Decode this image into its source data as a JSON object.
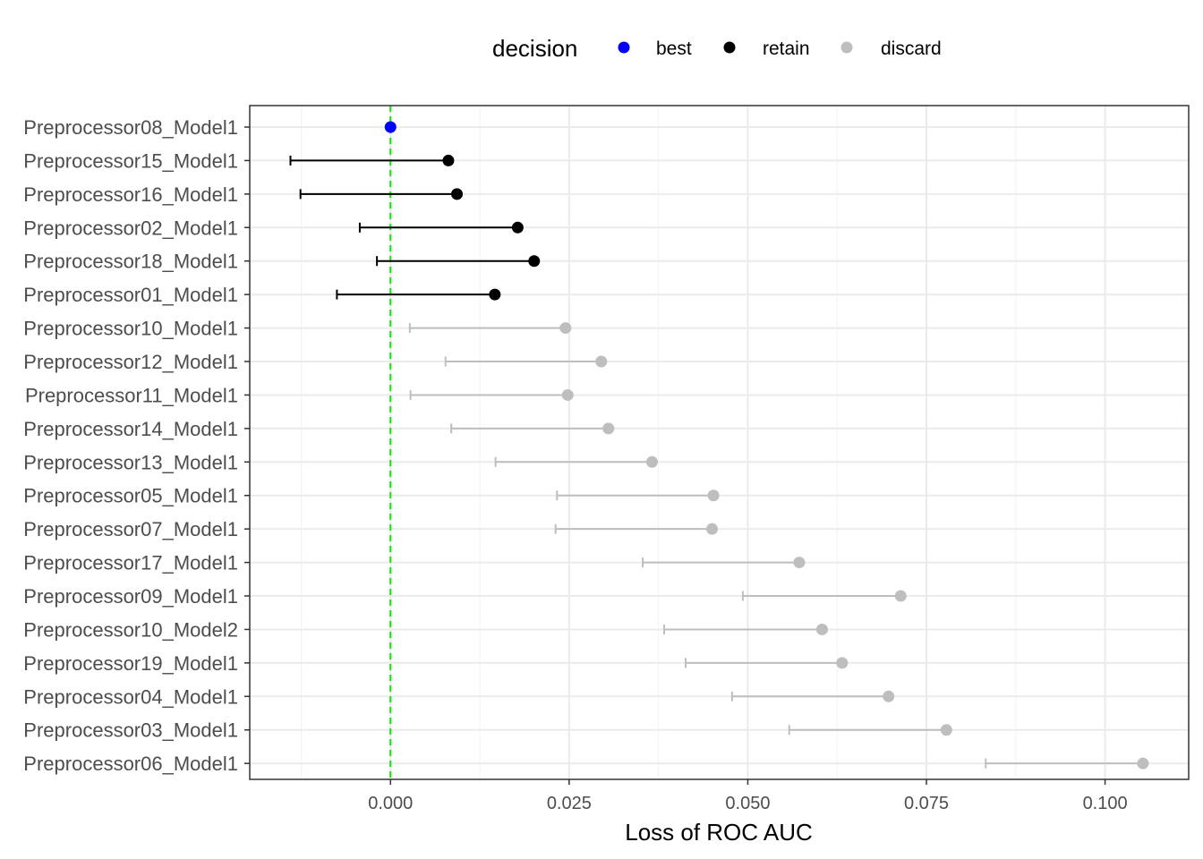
{
  "chart_data": {
    "type": "scatter",
    "xlabel": "Loss of ROC AUC",
    "ylabel": "",
    "xlim": [
      -0.0197,
      0.1117
    ],
    "x_ticks": [
      {
        "value": 0.0,
        "label": "0.000"
      },
      {
        "value": 0.025,
        "label": "0.025"
      },
      {
        "value": 0.05,
        "label": "0.050"
      },
      {
        "value": 0.075,
        "label": "0.075"
      },
      {
        "value": 0.1,
        "label": "0.100"
      }
    ],
    "reference_line": {
      "x": 0.0,
      "color": "#00ee00",
      "style": "dashed"
    },
    "grid": true,
    "legend": {
      "title": "decision",
      "position": "top",
      "entries": [
        {
          "label": "best",
          "color": "#0000ff"
        },
        {
          "label": "retain",
          "color": "#000000"
        },
        {
          "label": "discard",
          "color": "#bebebe"
        }
      ]
    },
    "points": [
      {
        "label": "Preprocessor08_Model1",
        "x": 0.0,
        "lower": null,
        "decision": "best"
      },
      {
        "label": "Preprocessor15_Model1",
        "x": 0.0081,
        "lower": -0.014,
        "decision": "retain"
      },
      {
        "label": "Preprocessor16_Model1",
        "x": 0.0093,
        "lower": -0.0126,
        "decision": "retain"
      },
      {
        "label": "Preprocessor02_Model1",
        "x": 0.0178,
        "lower": -0.0043,
        "decision": "retain"
      },
      {
        "label": "Preprocessor18_Model1",
        "x": 0.0201,
        "lower": -0.0019,
        "decision": "retain"
      },
      {
        "label": "Preprocessor01_Model1",
        "x": 0.0146,
        "lower": -0.0075,
        "decision": "retain"
      },
      {
        "label": "Preprocessor10_Model1",
        "x": 0.0245,
        "lower": 0.0027,
        "decision": "discard"
      },
      {
        "label": "Preprocessor12_Model1",
        "x": 0.0295,
        "lower": 0.0077,
        "decision": "discard"
      },
      {
        "label": "Preprocessor11_Model1",
        "x": 0.0248,
        "lower": 0.0028,
        "decision": "discard"
      },
      {
        "label": "Preprocessor14_Model1",
        "x": 0.0305,
        "lower": 0.0085,
        "decision": "discard"
      },
      {
        "label": "Preprocessor13_Model1",
        "x": 0.0366,
        "lower": 0.0147,
        "decision": "discard"
      },
      {
        "label": "Preprocessor05_Model1",
        "x": 0.0452,
        "lower": 0.0233,
        "decision": "discard"
      },
      {
        "label": "Preprocessor07_Model1",
        "x": 0.045,
        "lower": 0.0231,
        "decision": "discard"
      },
      {
        "label": "Preprocessor17_Model1",
        "x": 0.0572,
        "lower": 0.0353,
        "decision": "discard"
      },
      {
        "label": "Preprocessor09_Model1",
        "x": 0.0714,
        "lower": 0.0493,
        "decision": "discard"
      },
      {
        "label": "Preprocessor10_Model2",
        "x": 0.0604,
        "lower": 0.0383,
        "decision": "discard"
      },
      {
        "label": "Preprocessor19_Model1",
        "x": 0.0632,
        "lower": 0.0413,
        "decision": "discard"
      },
      {
        "label": "Preprocessor04_Model1",
        "x": 0.0697,
        "lower": 0.0478,
        "decision": "discard"
      },
      {
        "label": "Preprocessor03_Model1",
        "x": 0.0778,
        "lower": 0.0558,
        "decision": "discard"
      },
      {
        "label": "Preprocessor06_Model1",
        "x": 0.1053,
        "lower": 0.0833,
        "decision": "discard"
      }
    ]
  }
}
